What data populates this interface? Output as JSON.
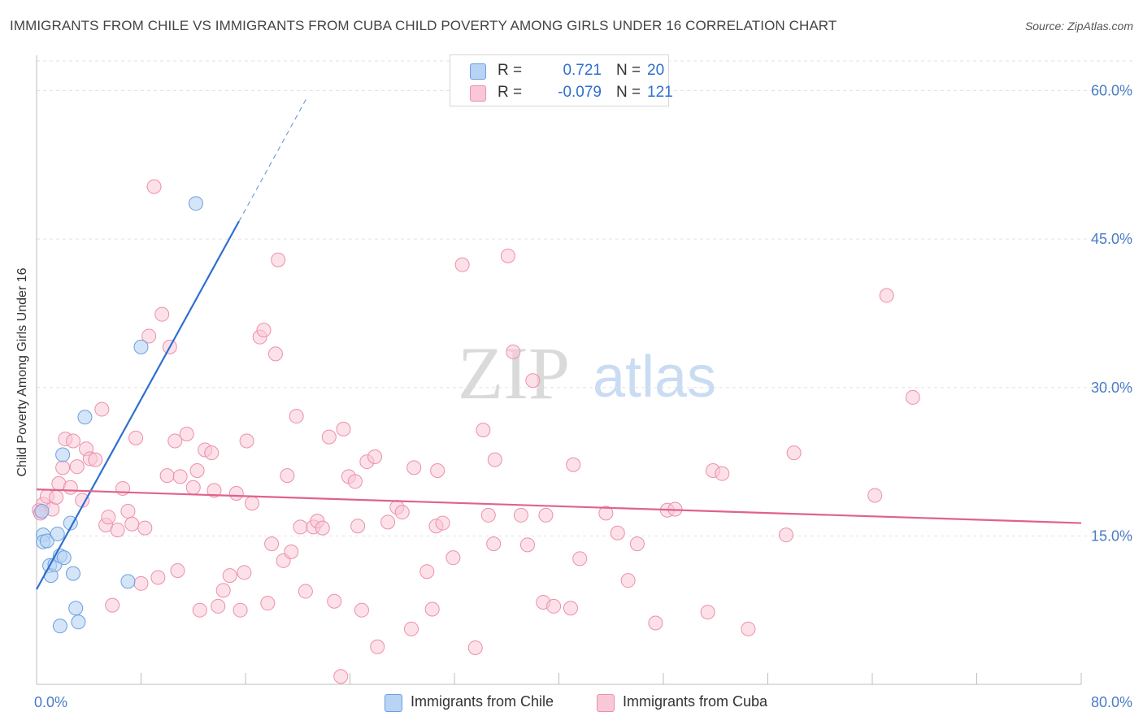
{
  "header": {
    "title": "IMMIGRANTS FROM CHILE VS IMMIGRANTS FROM CUBA CHILD POVERTY AMONG GIRLS UNDER 16 CORRELATION CHART",
    "source": "Source: ZipAtlas.com"
  },
  "watermark": {
    "zip": "ZIP",
    "atlas": "atlas"
  },
  "legend": {
    "r_label": "R =",
    "n_label": "N =",
    "chile": {
      "r": "0.721",
      "n": "20"
    },
    "cuba": {
      "r": "-0.079",
      "n": "121"
    }
  },
  "colors": {
    "chile_fill": "#b8d3f3",
    "chile_stroke": "#6b9fe0",
    "chile_line": "#2f6fd1",
    "cuba_fill": "#f9c8d6",
    "cuba_stroke": "#ec8fac",
    "cuba_line": "#e0628c",
    "axis_text": "#4a7cc7"
  },
  "chart_data": {
    "type": "scatter",
    "title": "IMMIGRANTS FROM CHILE VS IMMIGRANTS FROM CUBA CHILD POVERTY AMONG GIRLS UNDER 16 CORRELATION CHART",
    "xlabel": "",
    "ylabel": "Child Poverty Among Girls Under 16",
    "xlim": [
      0,
      80
    ],
    "ylim": [
      0,
      63
    ],
    "x_tick_labels": [
      "0.0%",
      "80.0%"
    ],
    "y_ticks": [
      15,
      30,
      45,
      60
    ],
    "y_tick_labels": [
      "15.0%",
      "30.0%",
      "45.0%",
      "60.0%"
    ],
    "grid": true,
    "legend_position": "bottom-center",
    "series": [
      {
        "name": "Immigrants from Chile",
        "r": 0.721,
        "n": 20,
        "trend": {
          "x0": 0,
          "y0": 9.6,
          "x1": 15.5,
          "y1": 46.8,
          "dashed_to_x": 20.7
        },
        "points": [
          [
            0.4,
            17.5
          ],
          [
            0.5,
            15.1
          ],
          [
            0.5,
            14.4
          ],
          [
            0.8,
            14.5
          ],
          [
            1.0,
            12.0
          ],
          [
            1.1,
            11.0
          ],
          [
            1.4,
            12.1
          ],
          [
            1.6,
            15.2
          ],
          [
            1.8,
            13.0
          ],
          [
            2.0,
            23.2
          ],
          [
            2.1,
            12.8
          ],
          [
            2.6,
            16.3
          ],
          [
            2.8,
            11.2
          ],
          [
            3.0,
            7.7
          ],
          [
            3.2,
            6.3
          ],
          [
            3.7,
            27.0
          ],
          [
            1.8,
            5.9
          ],
          [
            7.0,
            10.4
          ],
          [
            8.0,
            34.1
          ],
          [
            12.2,
            48.6
          ]
        ]
      },
      {
        "name": "Immigrants from Cuba",
        "r": -0.079,
        "n": 121,
        "trend": {
          "x0": 0,
          "y0": 19.7,
          "x1": 80,
          "y1": 16.3
        },
        "points": [
          [
            0.2,
            17.6
          ],
          [
            0.5,
            18.2
          ],
          [
            0.8,
            19.0
          ],
          [
            1.2,
            17.7
          ],
          [
            1.5,
            18.9
          ],
          [
            1.7,
            20.3
          ],
          [
            2.0,
            21.9
          ],
          [
            2.2,
            24.8
          ],
          [
            2.6,
            19.9
          ],
          [
            2.8,
            24.6
          ],
          [
            3.1,
            22.0
          ],
          [
            3.5,
            18.6
          ],
          [
            3.8,
            23.8
          ],
          [
            4.1,
            22.8
          ],
          [
            4.5,
            22.7
          ],
          [
            5.0,
            27.8
          ],
          [
            5.3,
            16.1
          ],
          [
            5.5,
            16.9
          ],
          [
            5.8,
            8.0
          ],
          [
            6.2,
            15.6
          ],
          [
            6.6,
            19.8
          ],
          [
            7.0,
            17.5
          ],
          [
            7.3,
            16.2
          ],
          [
            7.6,
            24.9
          ],
          [
            8.0,
            10.2
          ],
          [
            8.3,
            15.8
          ],
          [
            8.6,
            35.2
          ],
          [
            9.0,
            50.3
          ],
          [
            9.3,
            10.8
          ],
          [
            9.6,
            37.4
          ],
          [
            10.0,
            21.1
          ],
          [
            10.2,
            34.1
          ],
          [
            10.6,
            24.6
          ],
          [
            10.8,
            11.5
          ],
          [
            11.0,
            21.0
          ],
          [
            11.5,
            25.3
          ],
          [
            12.0,
            19.9
          ],
          [
            12.3,
            21.6
          ],
          [
            12.5,
            7.5
          ],
          [
            12.9,
            23.7
          ],
          [
            13.4,
            23.4
          ],
          [
            13.6,
            19.6
          ],
          [
            13.9,
            7.9
          ],
          [
            14.3,
            9.5
          ],
          [
            14.8,
            11.0
          ],
          [
            15.3,
            19.3
          ],
          [
            15.6,
            7.5
          ],
          [
            15.9,
            11.3
          ],
          [
            16.1,
            24.6
          ],
          [
            16.5,
            18.3
          ],
          [
            17.1,
            35.1
          ],
          [
            17.4,
            35.8
          ],
          [
            17.7,
            8.2
          ],
          [
            18.0,
            14.2
          ],
          [
            18.3,
            33.4
          ],
          [
            18.5,
            42.9
          ],
          [
            18.9,
            12.5
          ],
          [
            19.2,
            21.1
          ],
          [
            19.5,
            13.4
          ],
          [
            19.9,
            27.1
          ],
          [
            20.2,
            15.9
          ],
          [
            20.6,
            9.4
          ],
          [
            21.2,
            15.9
          ],
          [
            21.5,
            16.5
          ],
          [
            21.9,
            15.8
          ],
          [
            22.4,
            25.0
          ],
          [
            22.8,
            8.4
          ],
          [
            23.3,
            0.8
          ],
          [
            23.5,
            25.8
          ],
          [
            23.9,
            21.0
          ],
          [
            24.4,
            20.5
          ],
          [
            24.6,
            16.0
          ],
          [
            24.9,
            7.5
          ],
          [
            25.3,
            22.5
          ],
          [
            25.9,
            23.0
          ],
          [
            26.1,
            3.8
          ],
          [
            26.9,
            16.4
          ],
          [
            27.6,
            17.9
          ],
          [
            28.0,
            17.4
          ],
          [
            28.7,
            5.6
          ],
          [
            28.9,
            21.9
          ],
          [
            29.9,
            11.4
          ],
          [
            30.3,
            7.6
          ],
          [
            30.6,
            16.0
          ],
          [
            30.7,
            21.6
          ],
          [
            31.1,
            16.3
          ],
          [
            31.9,
            12.8
          ],
          [
            32.6,
            42.4
          ],
          [
            33.6,
            3.7
          ],
          [
            34.2,
            25.7
          ],
          [
            34.6,
            17.1
          ],
          [
            35.0,
            14.2
          ],
          [
            35.1,
            22.7
          ],
          [
            36.1,
            43.3
          ],
          [
            36.5,
            33.6
          ],
          [
            37.1,
            17.1
          ],
          [
            37.6,
            14.1
          ],
          [
            38.0,
            30.7
          ],
          [
            38.8,
            8.3
          ],
          [
            39.0,
            17.1
          ],
          [
            39.6,
            7.9
          ],
          [
            40.9,
            7.7
          ],
          [
            41.1,
            22.2
          ],
          [
            41.6,
            12.7
          ],
          [
            43.6,
            17.3
          ],
          [
            44.5,
            15.3
          ],
          [
            45.3,
            10.5
          ],
          [
            46.0,
            14.2
          ],
          [
            47.4,
            6.2
          ],
          [
            48.3,
            17.6
          ],
          [
            48.9,
            17.7
          ],
          [
            51.4,
            7.3
          ],
          [
            51.8,
            21.6
          ],
          [
            52.5,
            21.3
          ],
          [
            54.5,
            5.6
          ],
          [
            57.4,
            15.1
          ],
          [
            58.0,
            23.4
          ],
          [
            64.2,
            19.1
          ],
          [
            65.1,
            39.3
          ],
          [
            67.1,
            29.0
          ],
          [
            0.3,
            17.3
          ]
        ]
      }
    ]
  }
}
